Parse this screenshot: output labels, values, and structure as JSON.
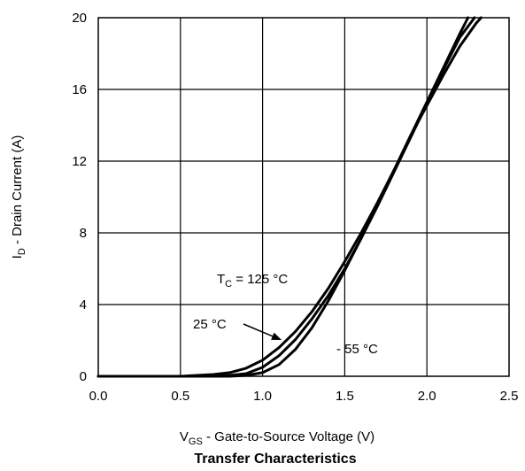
{
  "chart_data": {
    "type": "line",
    "title": "Transfer Characteristics",
    "xlabel": {
      "main": "V",
      "sub": "GS",
      "rest": " - Gate-to-Source Voltage (V)"
    },
    "ylabel": {
      "main": "I",
      "sub": "D",
      "rest": " - Drain Current (A)"
    },
    "xlim": [
      0,
      2.5
    ],
    "ylim": [
      0,
      20
    ],
    "x_ticks": [
      "0.0",
      "0.5",
      "1.0",
      "1.5",
      "2.0",
      "2.5"
    ],
    "y_ticks": [
      "0",
      "4",
      "8",
      "12",
      "16",
      "20"
    ],
    "grid": true,
    "annotations": {
      "tc125": {
        "main": "T",
        "sub": "C",
        "rest": " = 125 °C"
      },
      "t25": "25 °C",
      "tm55": "- 55 °C"
    },
    "series": [
      {
        "name": "T_C = 125 °C",
        "x": [
          0.0,
          0.5,
          0.7,
          0.8,
          0.9,
          1.0,
          1.1,
          1.2,
          1.3,
          1.4,
          1.5,
          1.6,
          1.7,
          1.8,
          1.9,
          2.0,
          2.1,
          2.2,
          2.25
        ],
        "y": [
          0.0,
          0.0,
          0.1,
          0.2,
          0.45,
          0.9,
          1.6,
          2.5,
          3.6,
          4.9,
          6.4,
          8.0,
          9.7,
          11.5,
          13.4,
          15.3,
          17.2,
          19.1,
          20.0
        ]
      },
      {
        "name": "25 °C",
        "x": [
          0.0,
          0.6,
          0.8,
          0.9,
          1.0,
          1.1,
          1.2,
          1.3,
          1.4,
          1.5,
          1.6,
          1.7,
          1.8,
          1.9,
          2.0,
          2.1,
          2.2,
          2.29
        ],
        "y": [
          0.0,
          0.0,
          0.05,
          0.15,
          0.5,
          1.15,
          2.05,
          3.2,
          4.5,
          6.0,
          7.7,
          9.5,
          11.4,
          13.3,
          15.2,
          17.1,
          18.9,
          20.0
        ]
      },
      {
        "name": "- 55 °C",
        "x": [
          0.0,
          0.8,
          0.9,
          1.0,
          1.1,
          1.2,
          1.3,
          1.4,
          1.5,
          1.6,
          1.7,
          1.8,
          1.9,
          2.0,
          2.1,
          2.2,
          2.3,
          2.33
        ],
        "y": [
          0.0,
          0.0,
          0.05,
          0.2,
          0.65,
          1.5,
          2.7,
          4.2,
          5.9,
          7.7,
          9.6,
          11.5,
          13.4,
          15.1,
          16.8,
          18.4,
          19.7,
          20.0
        ]
      }
    ]
  }
}
